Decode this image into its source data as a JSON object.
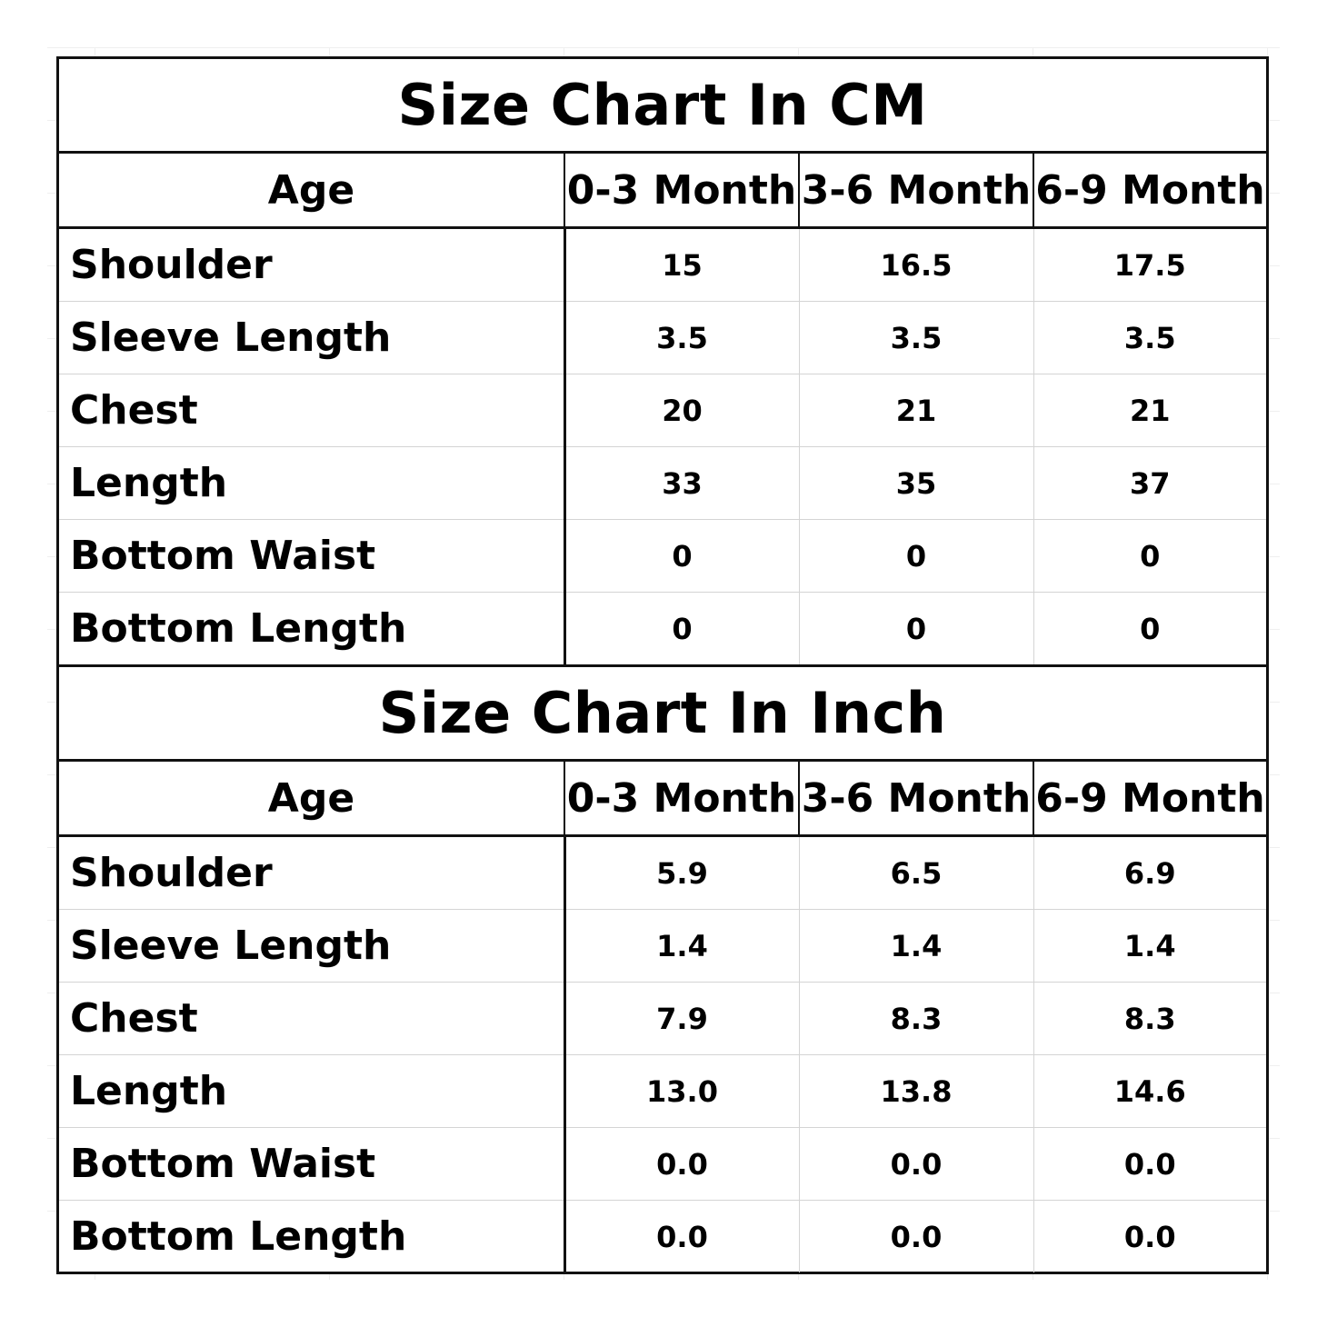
{
  "cm_table": {
    "title": "Size Chart In CM",
    "columns": [
      "Age",
      "0-3 Month",
      "3-6 Month",
      "6-9 Month"
    ],
    "rows": [
      {
        "label": "Shoulder",
        "values": [
          "15",
          "16.5",
          "17.5"
        ]
      },
      {
        "label": "Sleeve Length",
        "values": [
          "3.5",
          "3.5",
          "3.5"
        ]
      },
      {
        "label": "Chest",
        "values": [
          "20",
          "21",
          "21"
        ]
      },
      {
        "label": "Length",
        "values": [
          "33",
          "35",
          "37"
        ]
      },
      {
        "label": "Bottom Waist",
        "values": [
          "0",
          "0",
          "0"
        ]
      },
      {
        "label": "Bottom Length",
        "values": [
          "0",
          "0",
          "0"
        ]
      }
    ]
  },
  "inch_table": {
    "title": "Size Chart In Inch",
    "columns": [
      "Age",
      "0-3 Month",
      "3-6 Month",
      "6-9 Month"
    ],
    "rows": [
      {
        "label": "Shoulder",
        "values": [
          "5.9",
          "6.5",
          "6.9"
        ]
      },
      {
        "label": "Sleeve Length",
        "values": [
          "1.4",
          "1.4",
          "1.4"
        ]
      },
      {
        "label": "Chest",
        "values": [
          "7.9",
          "8.3",
          "8.3"
        ]
      },
      {
        "label": "Length",
        "values": [
          "13.0",
          "13.8",
          "14.6"
        ]
      },
      {
        "label": "Bottom Waist",
        "values": [
          "0.0",
          "0.0",
          "0.0"
        ]
      },
      {
        "label": "Bottom Length",
        "values": [
          "0.0",
          "0.0",
          "0.0"
        ]
      }
    ]
  },
  "colors": {
    "border": "#111111",
    "gridline": "#d4d4d4",
    "background": "#ffffff",
    "text": "#000000"
  }
}
